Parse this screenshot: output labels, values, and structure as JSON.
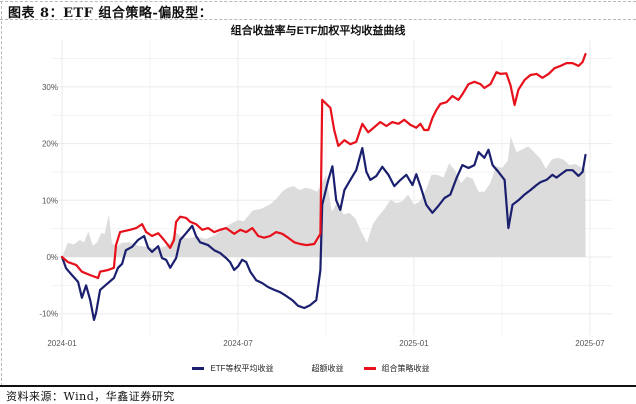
{
  "figure": {
    "title": "图表 8：ETF 组合策略-偏股型：",
    "source": "资料来源：Wind，华鑫证券研究"
  },
  "chart_data": {
    "type": "line",
    "title": "组合收益率与ETF加权平均收益曲线",
    "xlabel": "",
    "ylabel": "",
    "x_tick_labels": [
      "2024-01",
      "2024-07",
      "2025-01",
      "2025-07"
    ],
    "y_tick_labels": [
      "-10%",
      "0%",
      "10%",
      "20%",
      "30%"
    ],
    "ylim": [
      -12,
      38
    ],
    "xlim": [
      "2024-01",
      "2025-08"
    ],
    "grid": true,
    "legend_position": "bottom",
    "x_unit": "months since 2024-01",
    "colors": {
      "etf": "#1a1f6e",
      "excess": "#dcdcdc",
      "strategy": "#e8101a"
    },
    "series": [
      {
        "name": "ETF等权平均收益",
        "type": "line",
        "color": "#1a1f6e",
        "points": [
          [
            0,
            0
          ],
          [
            0.14,
            -2
          ],
          [
            0.34,
            -3.2
          ],
          [
            0.55,
            -4.4
          ],
          [
            0.68,
            -7.2
          ],
          [
            0.82,
            -5
          ],
          [
            0.96,
            -7.6
          ],
          [
            1.09,
            -11.1
          ],
          [
            1.16,
            -9.9
          ],
          [
            1.3,
            -5.8
          ],
          [
            1.57,
            -4.6
          ],
          [
            1.77,
            -3.7
          ],
          [
            1.91,
            -1.9
          ],
          [
            2.05,
            -1.2
          ],
          [
            2.18,
            1.2
          ],
          [
            2.39,
            1.8
          ],
          [
            2.59,
            3
          ],
          [
            2.8,
            3.7
          ],
          [
            2.94,
            1.6
          ],
          [
            3.07,
            0.9
          ],
          [
            3.28,
            1.9
          ],
          [
            3.41,
            -0.2
          ],
          [
            3.55,
            -0.5
          ],
          [
            3.69,
            -1.9
          ],
          [
            3.89,
            -0.2
          ],
          [
            4.03,
            3
          ],
          [
            4.23,
            4.2
          ],
          [
            4.44,
            5.5
          ],
          [
            4.57,
            3.7
          ],
          [
            4.71,
            2.6
          ],
          [
            4.98,
            2.1
          ],
          [
            5.19,
            1.2
          ],
          [
            5.39,
            0.7
          ],
          [
            5.6,
            -0.2
          ],
          [
            5.73,
            -0.9
          ],
          [
            5.87,
            -2.3
          ],
          [
            6.01,
            -1.6
          ],
          [
            6.14,
            -0.5
          ],
          [
            6.28,
            -0.9
          ],
          [
            6.42,
            -2.6
          ],
          [
            6.62,
            -4.1
          ],
          [
            6.83,
            -4.6
          ],
          [
            7.03,
            -5.3
          ],
          [
            7.24,
            -5.8
          ],
          [
            7.44,
            -6.2
          ],
          [
            7.65,
            -6.9
          ],
          [
            7.85,
            -7.6
          ],
          [
            8.05,
            -8.6
          ],
          [
            8.26,
            -9
          ],
          [
            8.46,
            -8.5
          ],
          [
            8.67,
            -7.6
          ],
          [
            8.81,
            -2.3
          ],
          [
            8.87,
            9.2
          ],
          [
            9.08,
            13.6
          ],
          [
            9.22,
            16
          ],
          [
            9.35,
            10
          ],
          [
            9.49,
            8.3
          ],
          [
            9.63,
            11.8
          ],
          [
            9.83,
            13.6
          ],
          [
            10.03,
            15.3
          ],
          [
            10.24,
            19.2
          ],
          [
            10.38,
            15
          ],
          [
            10.51,
            13.6
          ],
          [
            10.72,
            14.3
          ],
          [
            10.92,
            15.9
          ],
          [
            11.13,
            14.5
          ],
          [
            11.33,
            12.5
          ],
          [
            11.54,
            13.6
          ],
          [
            11.74,
            14.5
          ],
          [
            11.95,
            12.7
          ],
          [
            12.08,
            14.6
          ],
          [
            12.22,
            12.5
          ],
          [
            12.42,
            9.2
          ],
          [
            12.63,
            7.8
          ],
          [
            12.83,
            9
          ],
          [
            13.04,
            10.4
          ],
          [
            13.24,
            11
          ],
          [
            13.45,
            13.9
          ],
          [
            13.65,
            16.2
          ],
          [
            13.86,
            15.7
          ],
          [
            14.06,
            16.2
          ],
          [
            14.2,
            18.5
          ],
          [
            14.4,
            17.5
          ],
          [
            14.54,
            18.9
          ],
          [
            14.68,
            16.2
          ],
          [
            14.88,
            15
          ],
          [
            15.09,
            13.6
          ],
          [
            15.22,
            5.1
          ],
          [
            15.36,
            9.2
          ],
          [
            15.56,
            10
          ],
          [
            15.77,
            11
          ],
          [
            15.97,
            11.8
          ],
          [
            16.18,
            12.7
          ],
          [
            16.31,
            13.2
          ],
          [
            16.52,
            13.6
          ],
          [
            16.72,
            14.5
          ],
          [
            16.86,
            14
          ],
          [
            17.06,
            14.8
          ],
          [
            17.2,
            15.3
          ],
          [
            17.41,
            15.3
          ],
          [
            17.61,
            14.3
          ],
          [
            17.75,
            15
          ],
          [
            17.85,
            18
          ]
        ]
      },
      {
        "name": "超额收益",
        "type": "area",
        "color": "#dcdcdc",
        "points": [
          [
            0,
            0
          ],
          [
            0.2,
            2.5
          ],
          [
            0.4,
            2.2
          ],
          [
            0.6,
            3
          ],
          [
            0.75,
            2.6
          ],
          [
            0.9,
            4.5
          ],
          [
            1.05,
            2
          ],
          [
            1.2,
            2.6
          ],
          [
            1.35,
            4.3
          ],
          [
            1.45,
            4
          ],
          [
            1.6,
            7.5
          ],
          [
            1.7,
            2.5
          ],
          [
            1.85,
            1.8
          ],
          [
            2.05,
            2.5
          ],
          [
            2.3,
            2.6
          ],
          [
            2.6,
            2
          ],
          [
            2.9,
            1.8
          ],
          [
            3.2,
            1.5
          ],
          [
            3.5,
            1.8
          ],
          [
            3.7,
            2.6
          ],
          [
            3.85,
            4.5
          ],
          [
            4.05,
            3.6
          ],
          [
            4.3,
            3.3
          ],
          [
            4.6,
            3.6
          ],
          [
            4.9,
            3.2
          ],
          [
            5.2,
            3.8
          ],
          [
            5.5,
            5
          ],
          [
            5.8,
            6
          ],
          [
            6.0,
            6.5
          ],
          [
            6.2,
            6.3
          ],
          [
            6.5,
            8.2
          ],
          [
            6.8,
            8.5
          ],
          [
            7.1,
            9.3
          ],
          [
            7.3,
            10.2
          ],
          [
            7.5,
            11.5
          ],
          [
            7.7,
            12.2
          ],
          [
            7.9,
            12.5
          ],
          [
            8.1,
            11.8
          ],
          [
            8.3,
            12.2
          ],
          [
            8.5,
            12
          ],
          [
            8.7,
            11.5
          ],
          [
            8.85,
            12.8
          ],
          [
            9.0,
            14.5
          ],
          [
            9.2,
            8
          ],
          [
            9.4,
            9.8
          ],
          [
            9.6,
            7.5
          ],
          [
            9.8,
            7.8
          ],
          [
            10.0,
            6.8
          ],
          [
            10.2,
            4.5
          ],
          [
            10.4,
            2.5
          ],
          [
            10.6,
            5.8
          ],
          [
            10.8,
            7.3
          ],
          [
            11.0,
            8.5
          ],
          [
            11.2,
            10.1
          ],
          [
            11.4,
            9.5
          ],
          [
            11.6,
            9.8
          ],
          [
            11.8,
            11
          ],
          [
            12.0,
            9.2
          ],
          [
            12.2,
            9.8
          ],
          [
            12.4,
            11.8
          ],
          [
            12.6,
            14.5
          ],
          [
            12.8,
            14.5
          ],
          [
            13.0,
            14
          ],
          [
            13.2,
            16.5
          ],
          [
            13.4,
            15.3
          ],
          [
            13.6,
            13
          ],
          [
            13.8,
            14.2
          ],
          [
            14.0,
            13.8
          ],
          [
            14.2,
            11.5
          ],
          [
            14.4,
            11.5
          ],
          [
            14.6,
            13
          ],
          [
            14.8,
            16
          ],
          [
            15.0,
            15.7
          ],
          [
            15.2,
            17
          ],
          [
            15.3,
            21.2
          ],
          [
            15.5,
            18.5
          ],
          [
            15.7,
            19
          ],
          [
            15.9,
            19.5
          ],
          [
            16.1,
            18.5
          ],
          [
            16.3,
            17.4
          ],
          [
            16.5,
            15.6
          ],
          [
            16.7,
            17.2
          ],
          [
            16.9,
            17.5
          ],
          [
            17.1,
            17.2
          ],
          [
            17.3,
            16.2
          ],
          [
            17.5,
            16.4
          ],
          [
            17.7,
            15.8
          ],
          [
            17.85,
            15.5
          ]
        ]
      },
      {
        "name": "组合策略收益",
        "type": "line",
        "color": "#e8101a",
        "points": [
          [
            0,
            0
          ],
          [
            0.2,
            -0.9
          ],
          [
            0.48,
            -1.4
          ],
          [
            0.68,
            -2.6
          ],
          [
            0.96,
            -3.2
          ],
          [
            1.23,
            -3.7
          ],
          [
            1.3,
            -2.6
          ],
          [
            1.57,
            -2.3
          ],
          [
            1.77,
            -1.9
          ],
          [
            1.84,
            2.1
          ],
          [
            1.98,
            4.4
          ],
          [
            2.32,
            4.8
          ],
          [
            2.53,
            5.1
          ],
          [
            2.73,
            5.8
          ],
          [
            2.87,
            4.4
          ],
          [
            3.07,
            3.7
          ],
          [
            3.28,
            4.2
          ],
          [
            3.48,
            3
          ],
          [
            3.69,
            1.6
          ],
          [
            3.82,
            3
          ],
          [
            3.89,
            6.2
          ],
          [
            4.03,
            7.1
          ],
          [
            4.23,
            6.9
          ],
          [
            4.37,
            6.2
          ],
          [
            4.57,
            5.8
          ],
          [
            4.78,
            4.8
          ],
          [
            4.98,
            5.1
          ],
          [
            5.19,
            4.4
          ],
          [
            5.39,
            4.8
          ],
          [
            5.6,
            5.1
          ],
          [
            5.87,
            4.1
          ],
          [
            6.08,
            4.8
          ],
          [
            6.28,
            4.4
          ],
          [
            6.49,
            5.1
          ],
          [
            6.69,
            3.7
          ],
          [
            6.89,
            3.4
          ],
          [
            7.1,
            3.7
          ],
          [
            7.3,
            4.4
          ],
          [
            7.51,
            4.1
          ],
          [
            7.71,
            3.4
          ],
          [
            7.92,
            2.6
          ],
          [
            8.12,
            2.3
          ],
          [
            8.33,
            2.1
          ],
          [
            8.6,
            2.3
          ],
          [
            8.81,
            4.1
          ],
          [
            8.87,
            27.7
          ],
          [
            9.15,
            26.3
          ],
          [
            9.28,
            22.4
          ],
          [
            9.42,
            19.6
          ],
          [
            9.63,
            20.6
          ],
          [
            9.83,
            19.9
          ],
          [
            10.03,
            20.3
          ],
          [
            10.24,
            23.5
          ],
          [
            10.44,
            22
          ],
          [
            10.58,
            22.6
          ],
          [
            10.85,
            23.8
          ],
          [
            11.06,
            23.1
          ],
          [
            11.26,
            23.8
          ],
          [
            11.47,
            23.5
          ],
          [
            11.67,
            24.2
          ],
          [
            11.88,
            23.3
          ],
          [
            12.08,
            22.8
          ],
          [
            12.22,
            23.5
          ],
          [
            12.35,
            22.4
          ],
          [
            12.49,
            22.4
          ],
          [
            12.63,
            24.5
          ],
          [
            12.76,
            25.9
          ],
          [
            12.9,
            27
          ],
          [
            13.11,
            27.3
          ],
          [
            13.31,
            28.4
          ],
          [
            13.52,
            27.7
          ],
          [
            13.65,
            28.7
          ],
          [
            13.86,
            30.5
          ],
          [
            14.06,
            30.9
          ],
          [
            14.27,
            30.5
          ],
          [
            14.4,
            29.8
          ],
          [
            14.61,
            30.5
          ],
          [
            14.81,
            32.6
          ],
          [
            14.95,
            32.3
          ],
          [
            15.15,
            32.4
          ],
          [
            15.29,
            30.3
          ],
          [
            15.43,
            26.8
          ],
          [
            15.56,
            29.5
          ],
          [
            15.77,
            31.2
          ],
          [
            15.97,
            32.1
          ],
          [
            16.18,
            32.3
          ],
          [
            16.38,
            31.6
          ],
          [
            16.59,
            32.3
          ],
          [
            16.79,
            33.3
          ],
          [
            17.0,
            33.7
          ],
          [
            17.2,
            34.2
          ],
          [
            17.41,
            34.2
          ],
          [
            17.61,
            33.7
          ],
          [
            17.75,
            34.4
          ],
          [
            17.85,
            35.8
          ]
        ]
      }
    ]
  },
  "legend": {
    "items": [
      {
        "label": "ETF等权平均收益",
        "color": "#1a1f6e"
      },
      {
        "label": "超额收益",
        "color": "#ffffff"
      },
      {
        "label": "组合策略收益",
        "color": "#e8101a"
      }
    ]
  }
}
